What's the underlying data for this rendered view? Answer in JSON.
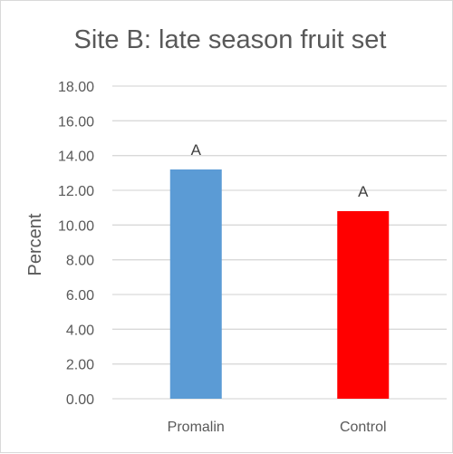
{
  "chart_data": {
    "type": "bar",
    "title": "Site B: late season fruit set",
    "xlabel": "",
    "ylabel": "Percent",
    "categories": [
      "Promalin",
      "Control"
    ],
    "values": [
      13.2,
      10.8
    ],
    "data_labels": [
      "A",
      "A"
    ],
    "colors": [
      "#5b9bd5",
      "#ff0000"
    ],
    "ylim": [
      0,
      18
    ],
    "yticks": [
      "0.00",
      "2.00",
      "4.00",
      "6.00",
      "8.00",
      "10.00",
      "12.00",
      "14.00",
      "16.00",
      "18.00"
    ],
    "grid": true,
    "legend": "none"
  },
  "style": {
    "gridline_color": "#d9d9d9",
    "text_color": "#595959"
  }
}
